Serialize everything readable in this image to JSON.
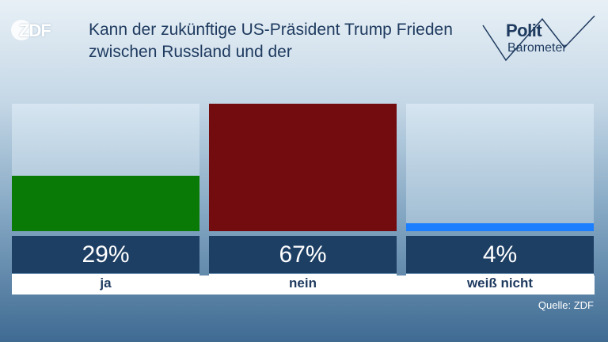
{
  "logo": {
    "text": "ZDF"
  },
  "title": "Kann der zukünftige US-Präsident Trump Frieden zwischen Russland und der",
  "brand": {
    "line1": "Polit",
    "line2": "Barometer"
  },
  "source": "Quelle: ZDF",
  "colors": {
    "ja": "#0a7a06",
    "nein": "#730c0f",
    "weiss_nicht": "#1c7fff",
    "value_box": "#1e3f64"
  },
  "chart_data": {
    "type": "bar",
    "categories": [
      "ja",
      "nein",
      "weiß nicht"
    ],
    "values": [
      29,
      67,
      4
    ],
    "value_labels": [
      "29%",
      "67%",
      "4%"
    ],
    "ylim": [
      0,
      67
    ],
    "grid": false
  }
}
